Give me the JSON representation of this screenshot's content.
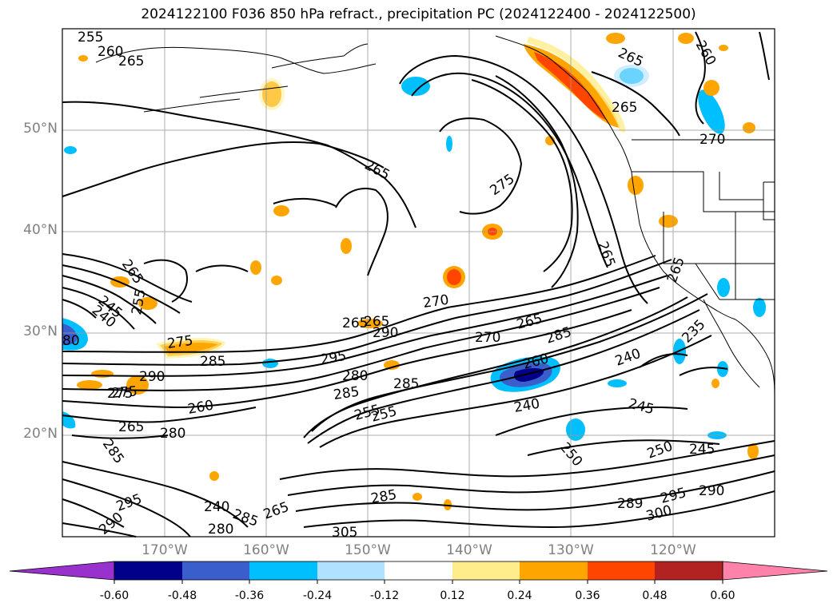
{
  "title": "2024122100 F036 850 hPa refract., precipitation PC (2024122400 - 2024122500)",
  "latitude_labels": [
    "50°N",
    "40°N",
    "30°N",
    "20°N"
  ],
  "longitude_labels": [
    "170°W",
    "160°W",
    "150°W",
    "140°W",
    "130°W",
    "120°W"
  ],
  "colorbar": {
    "colors": [
      "#9932cc",
      "#00008b",
      "#3a5fcd",
      "#00bfff",
      "#b0e2ff",
      "#ffffff",
      "#ffec8b",
      "#ffa500",
      "#ff4500",
      "#b22222",
      "#ff82ab"
    ],
    "tick_labels": [
      "-0.60",
      "-0.48",
      "-0.36",
      "-0.24",
      "-0.12",
      "0.12",
      "0.24",
      "0.36",
      "0.48",
      "0.60"
    ]
  },
  "contour_labels": [
    "255",
    "260",
    "265",
    "265",
    "265",
    "275",
    "265",
    "260",
    "265",
    "270",
    "265",
    "265",
    "245",
    "240",
    "255",
    "270",
    "265",
    "290",
    "270",
    "265",
    "285",
    "275",
    "285",
    "295",
    "280",
    "285",
    "285",
    "290",
    "275",
    "265",
    "260",
    "280",
    "285",
    "255",
    "240",
    "245",
    "250",
    "245",
    "290",
    "300",
    "295",
    "289",
    "285",
    "295",
    "290",
    "265",
    "285",
    "305",
    "235",
    "240",
    "250",
    "260",
    "275",
    "80",
    "255",
    "265",
    "280",
    "240"
  ],
  "map_layers": [
    "coastlines",
    "us-state-borders",
    "graticule",
    "850-hPa-refractivity-contours",
    "precipitation-pc-shading"
  ]
}
